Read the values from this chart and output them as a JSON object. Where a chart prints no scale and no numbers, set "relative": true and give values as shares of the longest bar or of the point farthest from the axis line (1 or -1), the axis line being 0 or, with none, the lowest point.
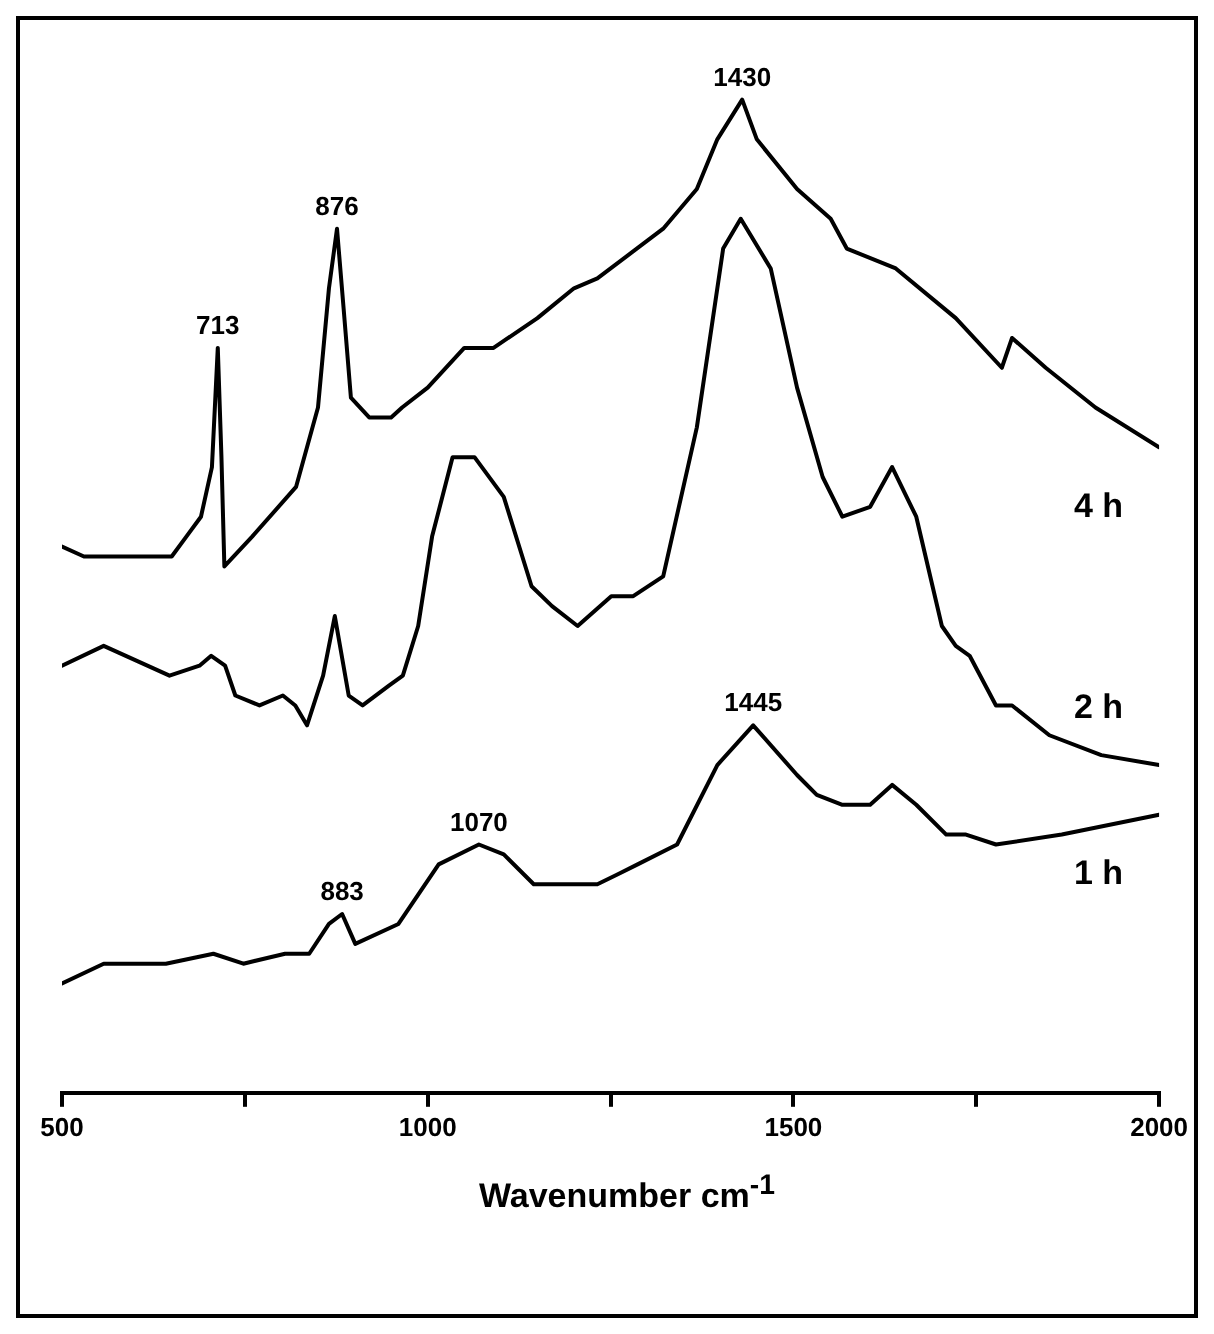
{
  "chart_data": {
    "type": "line",
    "relative": true,
    "xlabel": "Wavenumber cm$^{-1}$",
    "xlim": [
      500,
      2000
    ],
    "xticks": [
      500,
      {
        "value": 750,
        "label": null
      },
      1000,
      {
        "value": 1250,
        "label": null
      },
      1500,
      {
        "value": 1750,
        "label": null
      },
      2000
    ],
    "grid": false,
    "legend": false,
    "marker": "none",
    "line_style": "solid",
    "series": [
      {
        "name": "4 h",
        "color": "#000000",
        "x": [
          500,
          530,
          600,
          650,
          670,
          690,
          705,
          713,
          718,
          722,
          760,
          820,
          850,
          865,
          876,
          885,
          895,
          920,
          950,
          965,
          1000,
          1050,
          1090,
          1150,
          1200,
          1232,
          1322,
          1368,
          1396,
          1430,
          1450,
          1505,
          1551,
          1573,
          1640,
          1722,
          1785,
          1799,
          1845,
          1913,
          2000
        ],
        "values": [
          0.55,
          0.54,
          0.54,
          0.54,
          0.56,
          0.58,
          0.63,
          0.75,
          0.64,
          0.53,
          0.56,
          0.61,
          0.69,
          0.81,
          0.87,
          0.79,
          0.7,
          0.68,
          0.68,
          0.69,
          0.71,
          0.75,
          0.75,
          0.78,
          0.81,
          0.82,
          0.87,
          0.91,
          0.96,
          1,
          0.96,
          0.91,
          0.88,
          0.85,
          0.83,
          0.78,
          0.73,
          0.76,
          0.73,
          0.69,
          0.65
        ]
      },
      {
        "name": "2 h",
        "color": "#000000",
        "x": [
          500,
          557,
          647,
          688,
          704,
          723,
          737,
          770,
          802,
          819,
          835,
          857,
          873,
          892,
          911,
          947,
          966,
          987,
          1006,
          1034,
          1064,
          1104,
          1142,
          1170,
          1205,
          1251,
          1268,
          1281,
          1322,
          1368,
          1404,
          1428,
          1469,
          1505,
          1540,
          1567,
          1605,
          1635,
          1668,
          1703,
          1722,
          1741,
          1777,
          1799,
          1850,
          1921,
          2000
        ],
        "values": [
          0.43,
          0.45,
          0.42,
          0.43,
          0.44,
          0.43,
          0.4,
          0.39,
          0.4,
          0.39,
          0.37,
          0.42,
          0.48,
          0.4,
          0.39,
          0.41,
          0.42,
          0.47,
          0.56,
          0.64,
          0.64,
          0.6,
          0.51,
          0.49,
          0.47,
          0.5,
          0.5,
          0.5,
          0.52,
          0.67,
          0.85,
          0.88,
          0.83,
          0.71,
          0.62,
          0.58,
          0.59,
          0.63,
          0.58,
          0.47,
          0.45,
          0.44,
          0.39,
          0.39,
          0.36,
          0.34,
          0.33
        ]
      },
      {
        "name": "1 h",
        "color": "#000000",
        "x": [
          500,
          557,
          642,
          707,
          748,
          805,
          838,
          865,
          883,
          901,
          960,
          1015,
          1070,
          1104,
          1145,
          1200,
          1232,
          1260,
          1287,
          1341,
          1396,
          1445,
          1505,
          1532,
          1567,
          1605,
          1635,
          1668,
          1709,
          1736,
          1777,
          1867,
          2000
        ],
        "values": [
          0.11,
          0.13,
          0.13,
          0.14,
          0.13,
          0.14,
          0.14,
          0.17,
          0.18,
          0.15,
          0.17,
          0.23,
          0.25,
          0.24,
          0.21,
          0.21,
          0.21,
          0.22,
          0.23,
          0.25,
          0.33,
          0.37,
          0.32,
          0.3,
          0.29,
          0.29,
          0.31,
          0.29,
          0.26,
          0.26,
          0.25,
          0.26,
          0.28
        ]
      }
    ],
    "annotations": [
      {
        "text": "713",
        "x": 713,
        "y": 0.75
      },
      {
        "text": "876",
        "x": 876,
        "y": 0.87
      },
      {
        "text": "1430",
        "x": 1430,
        "y": 1
      },
      {
        "text": "883",
        "x": 883,
        "y": 0.18
      },
      {
        "text": "1070",
        "x": 1070,
        "y": 0.25
      },
      {
        "text": "1445",
        "x": 1445,
        "y": 0.37
      }
    ]
  }
}
